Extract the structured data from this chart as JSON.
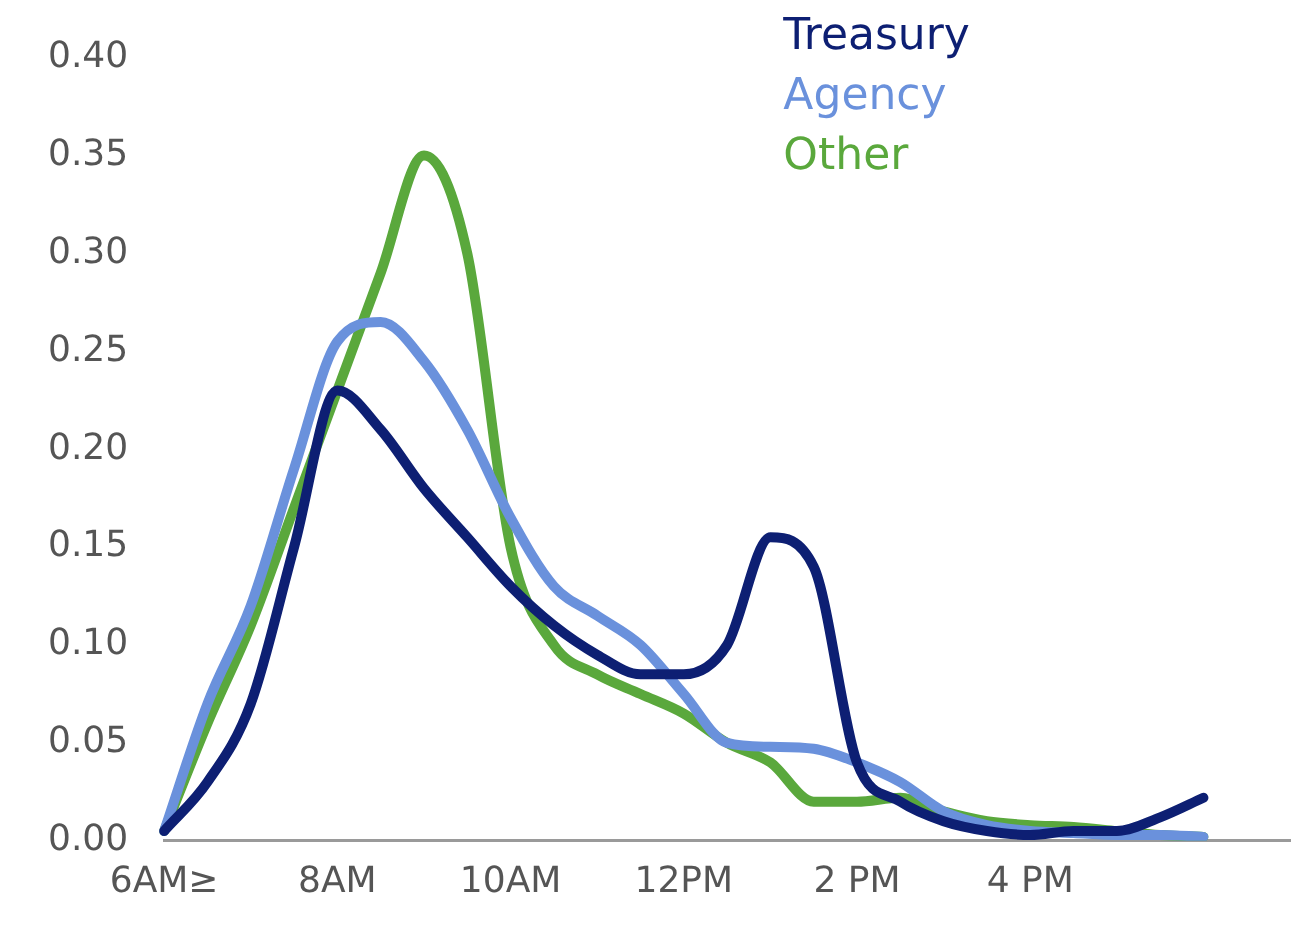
{
  "chart_data": {
    "type": "line",
    "categories": [
      "6AM≥",
      null,
      null,
      null,
      "8AM",
      null,
      null,
      null,
      "10AM",
      null,
      null,
      null,
      "12PM",
      null,
      null,
      null,
      "2 PM",
      null,
      null,
      null,
      "4 PM",
      null,
      null,
      null,
      null,
      null,
      null
    ],
    "series": [
      {
        "name": "Treasury",
        "color": "#0d1f73",
        "values": [
          0.005,
          0.03,
          0.07,
          0.15,
          0.23,
          0.21,
          0.18,
          0.155,
          0.13,
          0.11,
          0.095,
          0.085,
          0.085,
          0.1,
          0.155,
          0.14,
          0.04,
          0.02,
          0.01,
          0.005,
          0.003,
          0.005,
          0.005,
          0.012,
          0.022,
          null,
          null
        ]
      },
      {
        "name": "Agency",
        "color": "#6a91dc",
        "values": [
          0.005,
          0.07,
          0.12,
          0.19,
          0.255,
          0.265,
          0.245,
          0.21,
          0.165,
          0.13,
          0.115,
          0.1,
          0.075,
          0.05,
          0.048,
          0.047,
          0.04,
          0.03,
          0.015,
          0.008,
          0.005,
          0.004,
          0.003,
          0.003,
          0.002,
          null,
          null
        ]
      },
      {
        "name": "Other",
        "color": "#5aa83c",
        "values": [
          0.005,
          0.06,
          0.11,
          0.17,
          0.23,
          0.29,
          0.35,
          0.3,
          0.15,
          0.1,
          0.085,
          0.075,
          0.065,
          0.05,
          0.04,
          0.02,
          0.02,
          0.022,
          0.015,
          0.01,
          0.008,
          0.007,
          0.005,
          0.003,
          0.002,
          null,
          null
        ]
      }
    ],
    "ylim": [
      0,
      0.4
    ],
    "yticks": [
      {
        "value": 0,
        "label": "0.00"
      },
      {
        "value": 0.05,
        "label": "0.05"
      },
      {
        "value": 0.1,
        "label": "0.10"
      },
      {
        "value": 0.15,
        "label": "0.15"
      },
      {
        "value": 0.2,
        "label": "0.20"
      },
      {
        "value": 0.25,
        "label": "0.25"
      },
      {
        "value": 0.3,
        "label": "0.30"
      },
      {
        "value": 0.35,
        "label": "0.35"
      },
      {
        "value": 0.4,
        "label": "0.40"
      }
    ],
    "grid": false,
    "legend": "top",
    "marker": "none",
    "line_style": "solid"
  }
}
